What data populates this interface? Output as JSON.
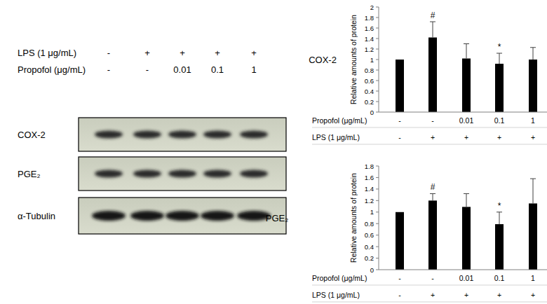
{
  "blot": {
    "lps_label": "LPS (1 μg/mL)",
    "lps": [
      "-",
      "+",
      "+",
      "+",
      "+"
    ],
    "propofol_label": "Propofol (μg/mL)",
    "propofol": [
      "-",
      "-",
      "0.01",
      "0.1",
      "1"
    ],
    "rows": [
      "COX-2",
      "PGE₂",
      "α-Tubulin"
    ]
  },
  "chart_data": [
    {
      "type": "bar",
      "title": "COX-2",
      "ylabel": "Relative amounts of protein",
      "category_rows": [
        {
          "label": "Propofol (μg/mL)",
          "categories": [
            "-",
            "-",
            "0.01",
            "0.1",
            "1"
          ]
        },
        {
          "label": "LPS  (1 μg/mL)",
          "categories": [
            "-",
            "+",
            "+",
            "+",
            "+"
          ]
        }
      ],
      "values": [
        1,
        1.42,
        1.02,
        0.92,
        1.0
      ],
      "errors": [
        0,
        0.3,
        0.28,
        0.2,
        0.23
      ],
      "annotations": [
        {
          "category": 1,
          "text": "#"
        },
        {
          "category": 3,
          "text": "*"
        }
      ],
      "color": "#000000",
      "ylim": [
        0,
        2
      ],
      "yticks": [
        0,
        0.2,
        0.4,
        0.6,
        0.8,
        1,
        1.2,
        1.4,
        1.6,
        1.8,
        2
      ],
      "grid": false
    },
    {
      "type": "bar",
      "title": "PGE₂",
      "ylabel": "Relative amounts of protein",
      "category_rows": [
        {
          "label": "Propofol (μg/mL)",
          "categories": [
            "-",
            "-",
            "0.01",
            "0.1",
            "1"
          ]
        },
        {
          "label": "LPS  (1 μg/mL)",
          "categories": [
            "-",
            "+",
            "+",
            "+",
            "+"
          ]
        }
      ],
      "values": [
        1,
        1.2,
        1.09,
        0.79,
        1.15
      ],
      "errors": [
        0,
        0.12,
        0.23,
        0.21,
        0.43
      ],
      "annotations": [
        {
          "category": 1,
          "text": "#"
        },
        {
          "category": 3,
          "text": "*"
        }
      ],
      "color": "#000000",
      "ylim": [
        0,
        1.8
      ],
      "yticks": [
        0,
        0.2,
        0.4,
        0.6,
        0.8,
        1,
        1.2,
        1.4,
        1.6,
        1.8
      ],
      "grid": false
    }
  ]
}
